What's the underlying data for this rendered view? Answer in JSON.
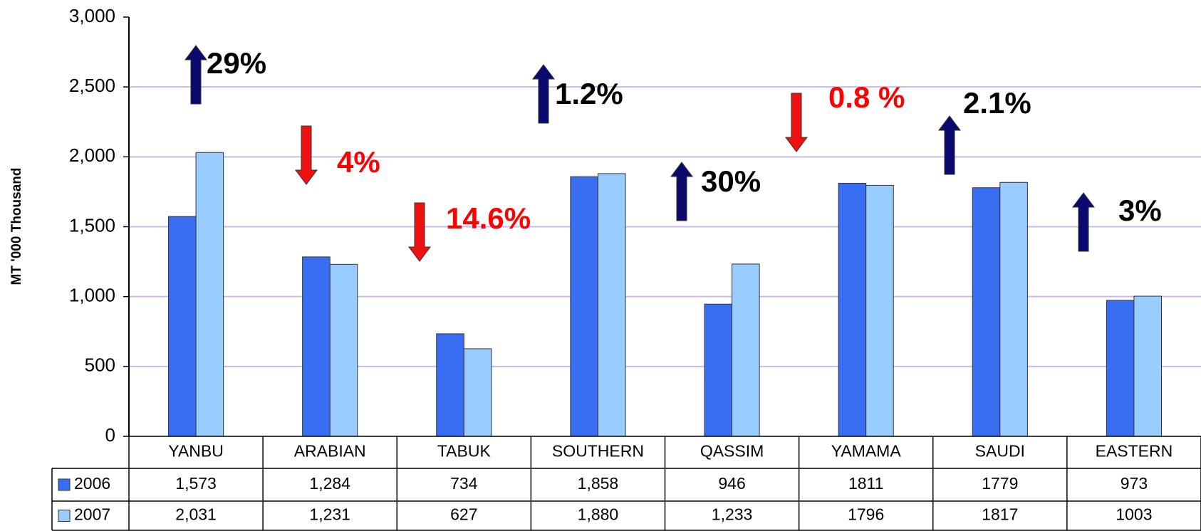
{
  "chart_data": {
    "type": "bar",
    "y_label": "MT '000 Thousand",
    "categories": [
      "YANBU",
      "ARABIAN",
      "TABUK",
      "SOUTHERN",
      "QASSIM",
      "YAMAMA",
      "SAUDI",
      "EASTERN"
    ],
    "series": [
      {
        "name": "2006",
        "color": "#3a6ef2",
        "values": [
          1573,
          1284,
          734,
          1858,
          946,
          1811,
          1779,
          973
        ],
        "value_labels": [
          "1,573",
          "1,284",
          "734",
          "1,858",
          "946",
          "1811",
          "1779",
          "973"
        ]
      },
      {
        "name": "2007",
        "color": "#99ccff",
        "values": [
          2031,
          1231,
          627,
          1880,
          1233,
          1796,
          1817,
          1003
        ],
        "value_labels": [
          "2,031",
          "1,231",
          "627",
          "1,880",
          "1,233",
          "1796",
          "1817",
          "1003"
        ]
      }
    ],
    "ylim": [
      0,
      3000
    ],
    "yticks": [
      0,
      500,
      {
        "value": 1000,
        "label": "1,000"
      },
      {
        "value": 1500,
        "label": "1,500"
      },
      {
        "value": 2000,
        "label": "2,000"
      },
      {
        "value": 2500,
        "label": "2,500"
      },
      {
        "value": 3000,
        "label": "3,000"
      }
    ],
    "grid": true,
    "annotations": [
      {
        "text": "29%",
        "direction": "up",
        "color": "#000000"
      },
      {
        "text": "4%",
        "direction": "down",
        "color": "#ff0000"
      },
      {
        "text": "14.6%",
        "direction": "down",
        "color": "#ff0000"
      },
      {
        "text": "1.2%",
        "direction": "up",
        "color": "#000000"
      },
      {
        "text": "30%",
        "direction": "up",
        "color": "#000000"
      },
      {
        "text": "0.8 %",
        "direction": "down",
        "color": "#ff0000"
      },
      {
        "text": "2.1%",
        "direction": "up",
        "color": "#000000"
      },
      {
        "text": "3%",
        "direction": "up",
        "color": "#000000"
      }
    ]
  }
}
